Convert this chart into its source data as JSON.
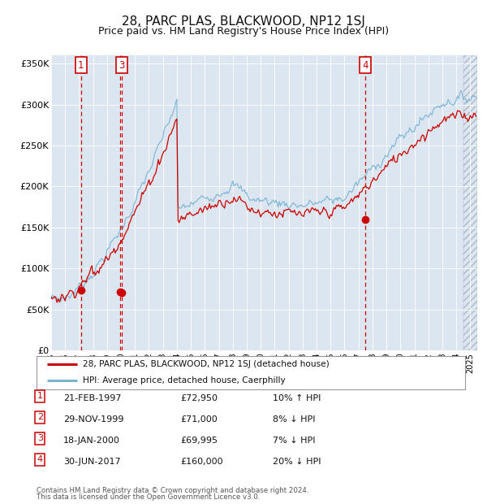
{
  "title": "28, PARC PLAS, BLACKWOOD, NP12 1SJ",
  "subtitle": "Price paid vs. HM Land Registry's House Price Index (HPI)",
  "hpi_legend": "HPI: Average price, detached house, Caerphilly",
  "price_legend": "28, PARC PLAS, BLACKWOOD, NP12 1SJ (detached house)",
  "footer1": "Contains HM Land Registry data © Crown copyright and database right 2024.",
  "footer2": "This data is licensed under the Open Government Licence v3.0.",
  "table_rows": [
    [
      "1",
      "21-FEB-1997",
      "£72,950",
      "10% ↑ HPI"
    ],
    [
      "2",
      "29-NOV-1999",
      "£71,000",
      "8% ↓ HPI"
    ],
    [
      "3",
      "18-JAN-2000",
      "£69,995",
      "7% ↓ HPI"
    ],
    [
      "4",
      "30-JUN-2017",
      "£160,000",
      "20% ↓ HPI"
    ]
  ],
  "sale_times": [
    1997.13,
    1999.91,
    2000.05,
    2017.5
  ],
  "sale_prices": [
    72950,
    71000,
    69995,
    160000
  ],
  "sale_labels": [
    1,
    3,
    4
  ],
  "sale_label_indices": [
    0,
    2,
    3
  ],
  "xmin": 1995.0,
  "xmax": 2025.5,
  "hatch_start": 2024.5,
  "ymin": 0,
  "ymax": 360000,
  "yticks": [
    0,
    50000,
    100000,
    150000,
    200000,
    250000,
    300000,
    350000
  ],
  "ytick_labels": [
    "£0",
    "£50K",
    "£100K",
    "£150K",
    "£200K",
    "£250K",
    "£300K",
    "£350K"
  ],
  "plot_bg": "#dce6f1",
  "hpi_color": "#7ab3d4",
  "price_color": "#cc0000",
  "dot_color": "#cc0000",
  "vline_color": "#cc0000",
  "grid_color": "#ffffff",
  "title_fontsize": 11,
  "subtitle_fontsize": 9
}
